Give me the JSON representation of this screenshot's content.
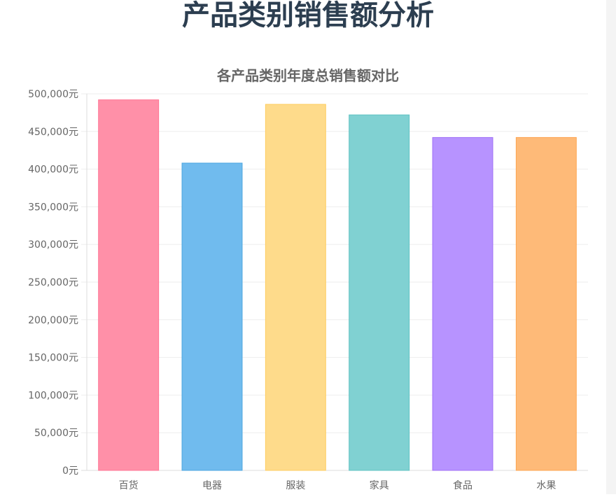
{
  "page": {
    "title": "产品类别销售额分析"
  },
  "chart_data": {
    "type": "bar",
    "title": "各产品类别年度总销售额对比",
    "xlabel": "",
    "ylabel": "",
    "categories": [
      "百货",
      "电器",
      "服装",
      "家具",
      "食品",
      "水果"
    ],
    "values": [
      492000,
      408000,
      486000,
      472000,
      442000,
      442000
    ],
    "ylim": [
      0,
      500000
    ],
    "yticks": [
      0,
      50000,
      100000,
      150000,
      200000,
      250000,
      300000,
      350000,
      400000,
      450000,
      500000
    ],
    "ytick_labels": [
      "0元",
      "50,000元",
      "100,000元",
      "150,000元",
      "200,000元",
      "250,000元",
      "300,000元",
      "350,000元",
      "400,000元",
      "450,000元",
      "500,000元"
    ],
    "grid": true,
    "legend": "none",
    "colors": [
      "#ff90a8",
      "#70bbee",
      "#fedb8b",
      "#80d1d2",
      "#b793ff",
      "#feba78"
    ],
    "border_colors": [
      "#ff7594",
      "#4da6e0",
      "#fecd60",
      "#5fc2c3",
      "#a070f5",
      "#fda552"
    ]
  }
}
